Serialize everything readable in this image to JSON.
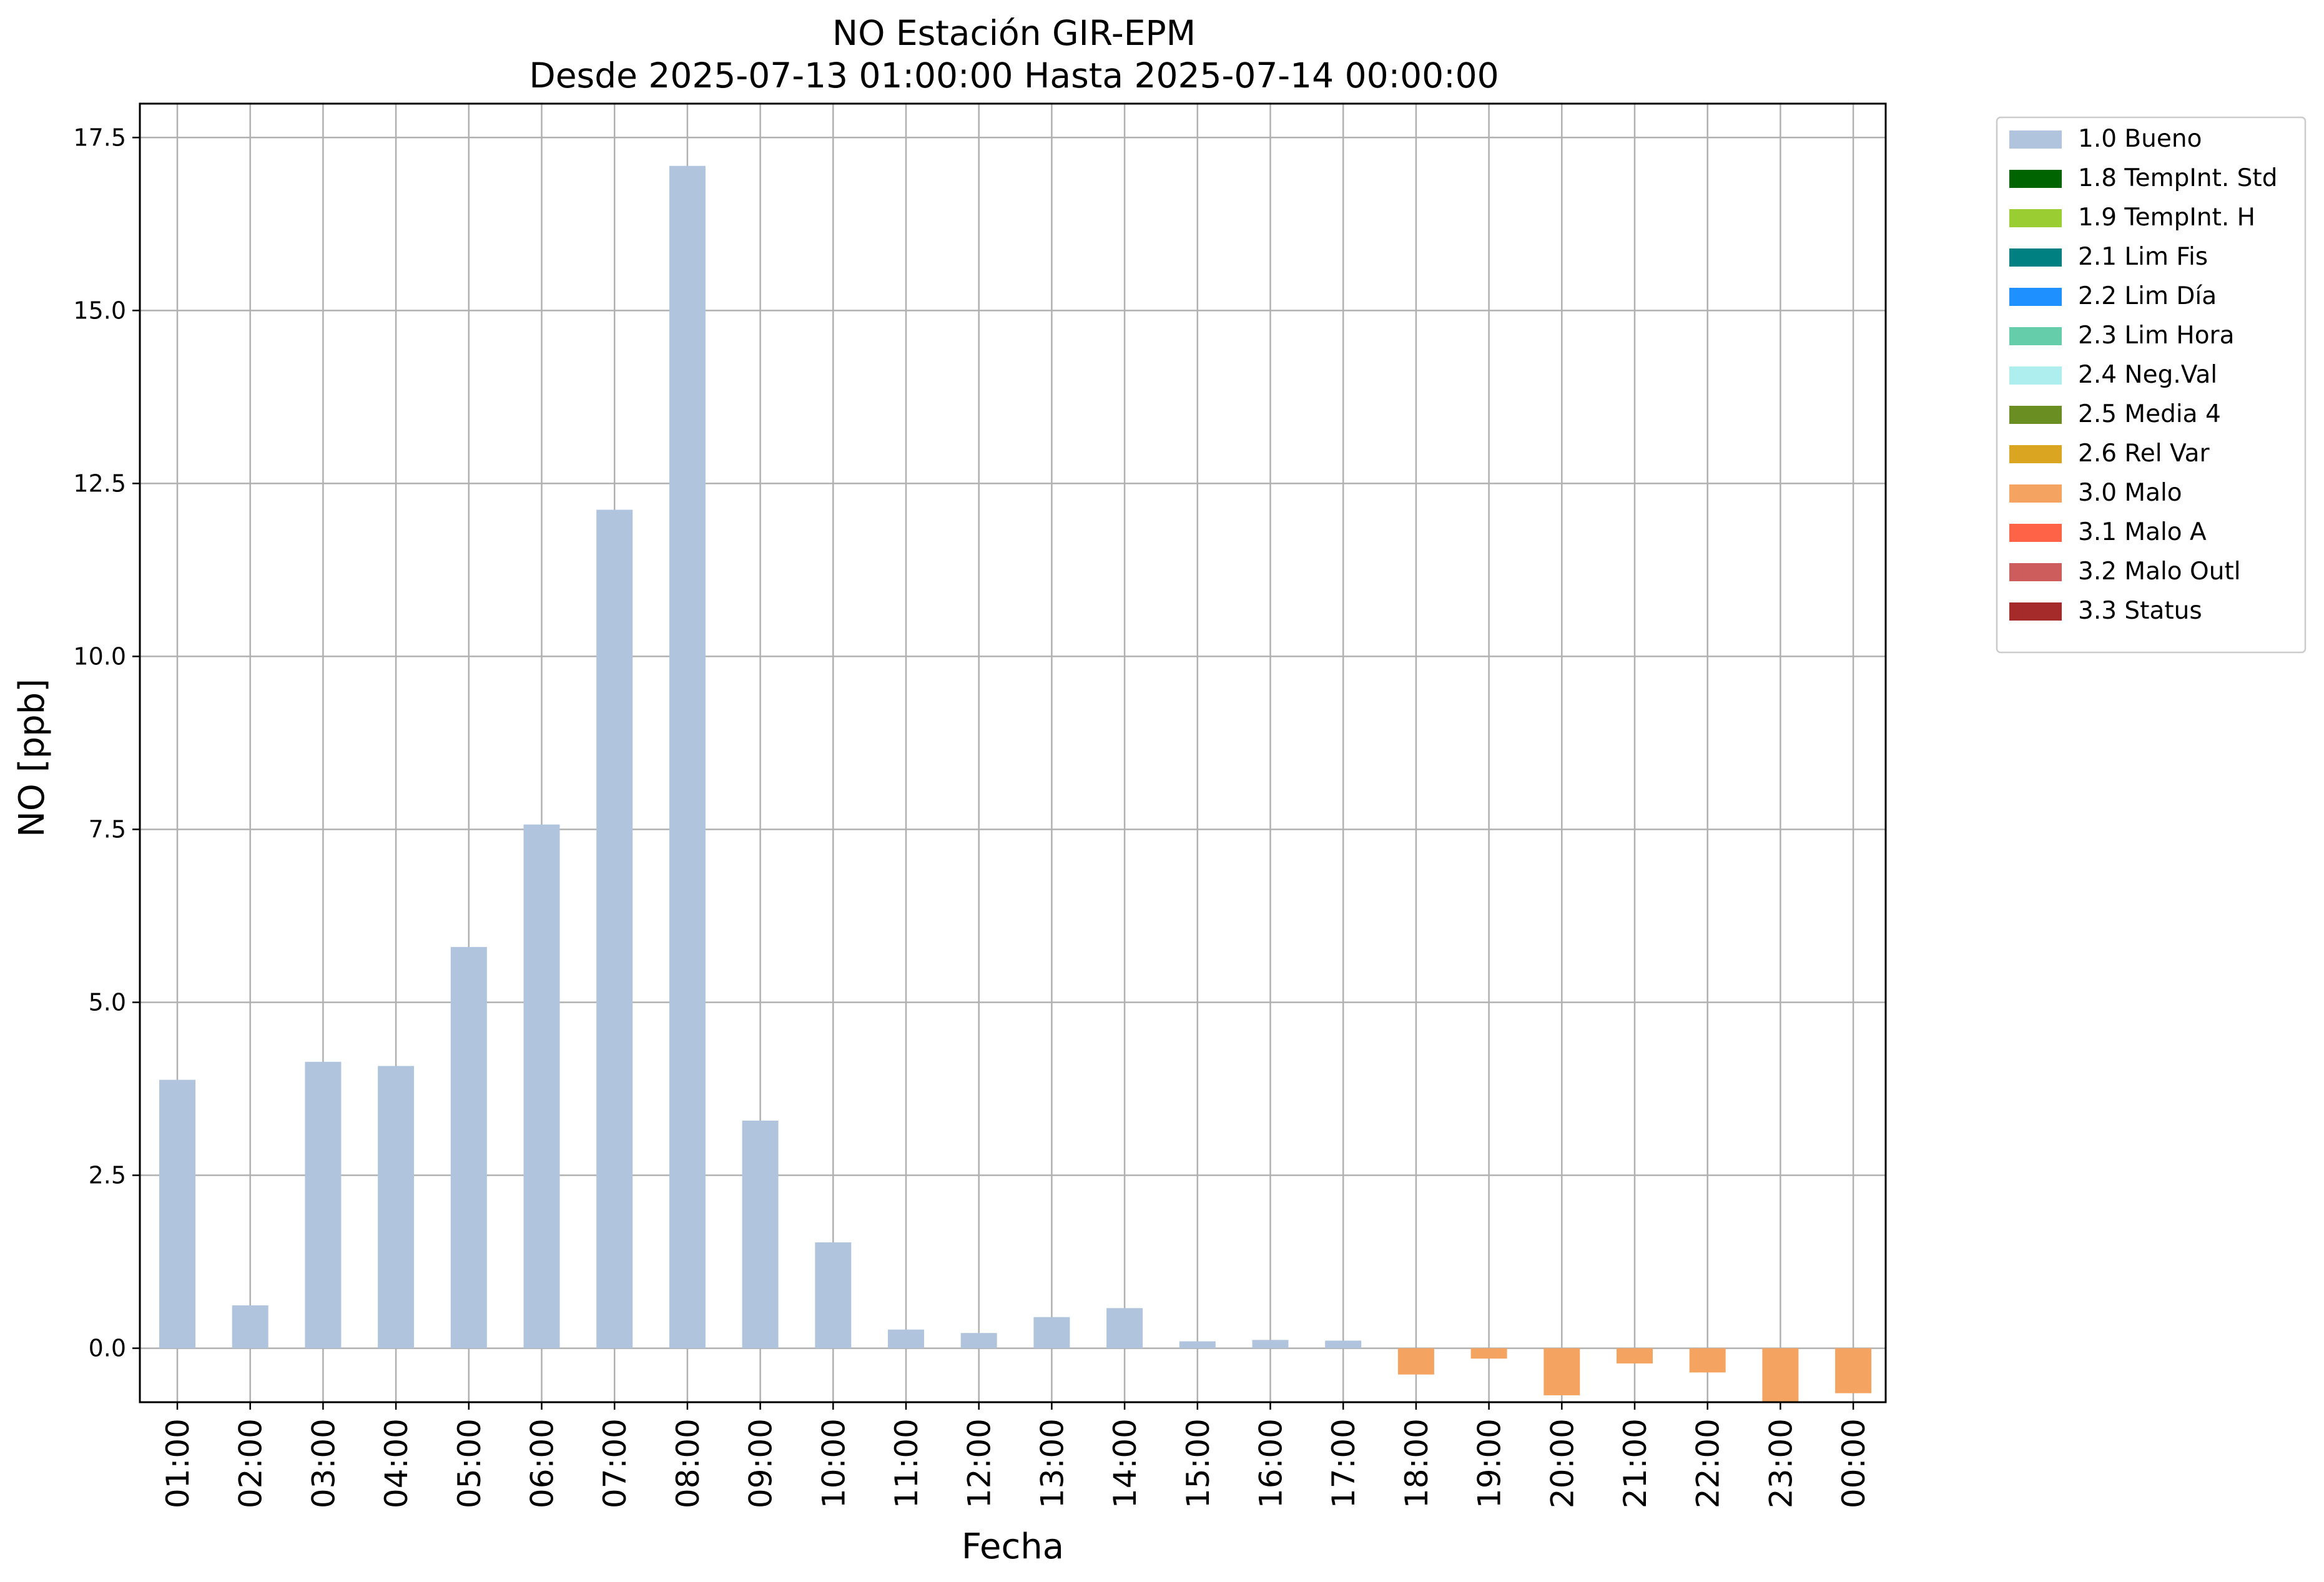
{
  "chart_data": {
    "type": "bar",
    "title": "NO Estación GIR-EPM",
    "subtitle": "Desde 2025-07-13 01:00:00 Hasta 2025-07-14 00:00:00",
    "xlabel": "Fecha",
    "ylabel": "NO [ppb]",
    "ylim": [
      -0.78,
      17.99
    ],
    "yticks": [
      "0.0",
      "2.5",
      "5.0",
      "7.5",
      "10.0",
      "12.5",
      "15.0",
      "17.5"
    ],
    "grid": true,
    "legend_position": "outside-top-right",
    "categories": [
      "01:00",
      "02:00",
      "03:00",
      "04:00",
      "05:00",
      "06:00",
      "07:00",
      "08:00",
      "09:00",
      "10:00",
      "11:00",
      "12:00",
      "13:00",
      "14:00",
      "15:00",
      "16:00",
      "17:00",
      "18:00",
      "19:00",
      "20:00",
      "21:00",
      "22:00",
      "23:00",
      "00:00"
    ],
    "values": [
      3.88,
      0.62,
      4.14,
      4.08,
      5.8,
      7.57,
      12.12,
      17.09,
      3.29,
      1.53,
      0.27,
      0.22,
      0.45,
      0.58,
      0.1,
      0.12,
      0.11,
      -0.38,
      -0.15,
      -0.68,
      -0.22,
      -0.35,
      -0.78,
      -0.65
    ],
    "flags": [
      "1.0 Bueno",
      "1.0 Bueno",
      "1.0 Bueno",
      "1.0 Bueno",
      "1.0 Bueno",
      "1.0 Bueno",
      "1.0 Bueno",
      "1.0 Bueno",
      "1.0 Bueno",
      "1.0 Bueno",
      "1.0 Bueno",
      "1.0 Bueno",
      "1.0 Bueno",
      "1.0 Bueno",
      "1.0 Bueno",
      "1.0 Bueno",
      "1.0 Bueno",
      "3.0 Malo",
      "3.0 Malo",
      "3.0 Malo",
      "3.0 Malo",
      "3.0 Malo",
      "3.0 Malo",
      "3.0 Malo"
    ],
    "legend": [
      {
        "label": "1.0 Bueno",
        "color": "#b0c4de"
      },
      {
        "label": "1.8 TempInt. Std",
        "color": "#006400"
      },
      {
        "label": "1.9 TempInt. H",
        "color": "#9acd32"
      },
      {
        "label": "2.1 Lim Fis",
        "color": "#008080"
      },
      {
        "label": "2.2 Lim Día",
        "color": "#1e90ff"
      },
      {
        "label": "2.3 Lim Hora",
        "color": "#66cdaa"
      },
      {
        "label": "2.4 Neg.Val",
        "color": "#afeeee"
      },
      {
        "label": "2.5 Media 4",
        "color": "#6b8e23"
      },
      {
        "label": "2.6 Rel Var",
        "color": "#daa520"
      },
      {
        "label": "3.0 Malo",
        "color": "#f4a460"
      },
      {
        "label": "3.1 Malo A",
        "color": "#ff6347"
      },
      {
        "label": "3.2 Malo Outl",
        "color": "#cd5c5c"
      },
      {
        "label": "3.3 Status",
        "color": "#a52a2a"
      }
    ]
  }
}
